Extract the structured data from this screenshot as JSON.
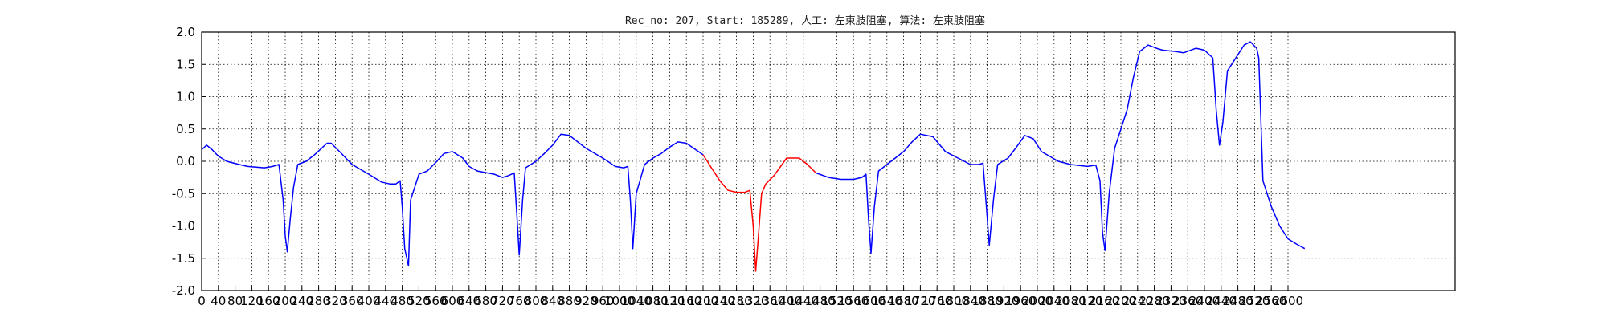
{
  "chart_data": {
    "type": "line",
    "title": "Rec_no: 207, Start: 185289, 人工: 左束肢阻塞, 算法: 左束肢阻塞",
    "xlabel": "",
    "ylabel": "",
    "xlim": [
      0,
      3000
    ],
    "ylim": [
      -2.0,
      2.0
    ],
    "grid": true,
    "grid_style": "dotted",
    "y_ticks": [
      "2.0",
      "1.5",
      "1.0",
      "0.5",
      "0.0",
      "-0.5",
      "-1.0",
      "-1.5",
      "-2.0"
    ],
    "x_ticks": [
      "0",
      "40",
      "80",
      "120",
      "160",
      "200",
      "240",
      "280",
      "320",
      "360",
      "400",
      "440",
      "480",
      "520",
      "560",
      "600",
      "640",
      "680",
      "720",
      "760",
      "800",
      "840",
      "880",
      "920",
      "960",
      "1000",
      "1040",
      "1080",
      "1120",
      "1160",
      "1200",
      "1240",
      "1280",
      "1320",
      "1360",
      "1400",
      "1440",
      "1480",
      "1520",
      "1560",
      "1600",
      "1640",
      "1680",
      "1720",
      "1760",
      "1800",
      "1840",
      "1880",
      "1920",
      "1960",
      "2000",
      "2040",
      "2080",
      "2120",
      "2160",
      "2200",
      "2240",
      "2280",
      "2320",
      "2360",
      "2400",
      "2440",
      "2480",
      "2520",
      "2560",
      "2600"
    ],
    "series": [
      {
        "color": "#0000ff",
        "x": [
          0,
          12,
          25,
          40,
          60,
          90,
          110,
          150,
          170,
          185,
          195,
          200,
          205,
          212,
          220,
          230,
          250,
          270,
          290,
          300,
          310,
          330,
          360,
          400,
          430,
          450,
          465,
          475,
          480,
          486,
          495,
          500,
          520,
          540,
          560,
          580,
          600,
          625,
          640,
          660,
          700,
          720,
          735,
          748,
          754,
          760,
          768,
          775,
          800,
          820,
          840,
          860,
          880,
          920,
          960,
          990,
          1010,
          1020,
          1026,
          1032,
          1040,
          1060,
          1080,
          1100,
          1120,
          1140,
          1160,
          1200
        ],
        "y": [
          0.18,
          0.25,
          0.18,
          0.08,
          0.0,
          -0.05,
          -0.08,
          -0.1,
          -0.08,
          -0.05,
          -0.6,
          -1.15,
          -1.4,
          -0.9,
          -0.4,
          -0.05,
          0.0,
          0.1,
          0.22,
          0.28,
          0.28,
          0.15,
          -0.05,
          -0.2,
          -0.32,
          -0.35,
          -0.35,
          -0.3,
          -0.7,
          -1.35,
          -1.62,
          -0.6,
          -0.2,
          -0.15,
          -0.02,
          0.12,
          0.15,
          0.05,
          -0.08,
          -0.15,
          -0.2,
          -0.25,
          -0.22,
          -0.18,
          -0.8,
          -1.45,
          -0.6,
          -0.1,
          0.0,
          0.12,
          0.25,
          0.42,
          0.4,
          0.2,
          0.05,
          -0.08,
          -0.1,
          -0.08,
          -0.6,
          -1.35,
          -0.5,
          -0.05,
          0.05,
          0.12,
          0.22,
          0.3,
          0.28,
          0.1
        ]
      },
      {
        "color": "#ff0000",
        "x": [
          1200,
          1220,
          1240,
          1260,
          1280,
          1300,
          1312,
          1320,
          1326,
          1332,
          1340,
          1350,
          1370,
          1400,
          1430,
          1450,
          1470
        ],
        "y": [
          0.1,
          -0.1,
          -0.3,
          -0.45,
          -0.48,
          -0.48,
          -0.45,
          -1.0,
          -1.7,
          -1.2,
          -0.5,
          -0.35,
          -0.22,
          0.05,
          0.05,
          -0.05,
          -0.18
        ]
      },
      {
        "color": "#0000ff",
        "x": [
          1470,
          1500,
          1530,
          1560,
          1580,
          1590,
          1596,
          1602,
          1610,
          1620,
          1650,
          1680,
          1700,
          1720,
          1750,
          1780,
          1810,
          1840,
          1860,
          1870,
          1878,
          1885,
          1895,
          1905,
          1930,
          1950,
          1970,
          1990,
          2010,
          2050,
          2080,
          2120,
          2140,
          2150,
          2156,
          2162,
          2172,
          2185,
          2200,
          2215,
          2230,
          2245,
          2265,
          2285,
          2300,
          2330,
          2350,
          2380,
          2400,
          2420,
          2428,
          2436,
          2444,
          2455,
          2475,
          2495,
          2510,
          2525,
          2530,
          2540,
          2560,
          2580,
          2600,
          2620,
          2640
        ],
        "y": [
          -0.18,
          -0.25,
          -0.28,
          -0.28,
          -0.25,
          -0.2,
          -0.9,
          -1.42,
          -0.7,
          -0.15,
          0.0,
          0.15,
          0.3,
          0.42,
          0.38,
          0.15,
          0.05,
          -0.05,
          -0.05,
          -0.03,
          -0.7,
          -1.3,
          -0.6,
          -0.05,
          0.05,
          0.22,
          0.4,
          0.35,
          0.15,
          0.0,
          -0.05,
          -0.08,
          -0.06,
          -0.3,
          -1.1,
          -1.38,
          -0.5,
          0.2,
          0.5,
          0.8,
          1.3,
          1.7,
          1.8,
          1.75,
          1.72,
          1.7,
          1.68,
          1.75,
          1.72,
          1.6,
          0.8,
          0.25,
          0.6,
          1.4,
          1.6,
          1.8,
          1.85,
          1.75,
          1.6,
          -0.3,
          -0.7,
          -1.0,
          -1.2,
          -1.28,
          -1.35
        ]
      }
    ]
  }
}
